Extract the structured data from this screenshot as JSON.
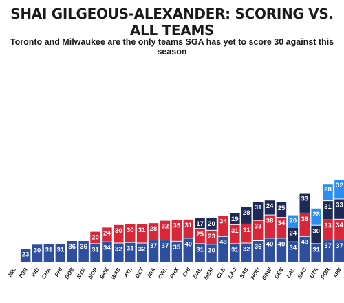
{
  "title": "SHAI GILGEOUS-ALEXANDER: SCORING VS. ALL TEAMS",
  "subtitle": "Toronto and Milwaukee are the only teams SGA has yet to score 30 against this season",
  "colors": {
    "game1": "#2e4f9e",
    "game2": "#d9273a",
    "game3": "#1d2a57",
    "game4": "#2c8df0"
  },
  "chart_data": {
    "type": "bar",
    "stacked": true,
    "title": "SHAI GILGEOUS-ALEXANDER: SCORING VS. ALL TEAMS",
    "subtitle": "Toronto and Milwaukee are the only teams SGA has yet to score 30 against this season",
    "xlabel": "",
    "ylabel": "",
    "grid": false,
    "legend": "none",
    "categories": [
      "MIL",
      "TOR",
      "IND",
      "CHA",
      "PHI",
      "BOS",
      "NYK",
      "NOP",
      "BRK",
      "WAS",
      "ATL",
      "DET",
      "MIA",
      "ORL",
      "PHX",
      "CHI",
      "DAL",
      "MEM",
      "CLE",
      "LAC",
      "SAS",
      "HOU",
      "GSW",
      "DEN",
      "LAL",
      "SAC",
      "UTA",
      "POR",
      "MIN"
    ],
    "games": [
      [],
      [
        23
      ],
      [
        30
      ],
      [
        31
      ],
      [
        31
      ],
      [
        36
      ],
      [
        36
      ],
      [
        31,
        20
      ],
      [
        34,
        24
      ],
      [
        32,
        30
      ],
      [
        33,
        30
      ],
      [
        32,
        31
      ],
      [
        37,
        28
      ],
      [
        37,
        32
      ],
      [
        35,
        35
      ],
      [
        40,
        31
      ],
      [
        31,
        25,
        17
      ],
      [
        30,
        23,
        20
      ],
      [
        43,
        34
      ],
      [
        31,
        31,
        19
      ],
      [
        32,
        31,
        28
      ],
      [
        36,
        33,
        31
      ],
      [
        40,
        38,
        24
      ],
      [
        40,
        34,
        25
      ],
      [
        34,
        24,
        20
      ],
      [
        43,
        38,
        33
      ],
      [
        31,
        30,
        28
      ],
      [
        37,
        33,
        31,
        28
      ],
      [
        37,
        34,
        33,
        32
      ]
    ],
    "game_color_keys": [
      [],
      [
        "game1"
      ],
      [
        "game1"
      ],
      [
        "game1"
      ],
      [
        "game1"
      ],
      [
        "game1"
      ],
      [
        "game1"
      ],
      [
        "game1",
        "game2"
      ],
      [
        "game1",
        "game2"
      ],
      [
        "game1",
        "game2"
      ],
      [
        "game1",
        "game2"
      ],
      [
        "game1",
        "game2"
      ],
      [
        "game1",
        "game2"
      ],
      [
        "game1",
        "game2"
      ],
      [
        "game1",
        "game2"
      ],
      [
        "game1",
        "game2"
      ],
      [
        "game1",
        "game2",
        "game3"
      ],
      [
        "game1",
        "game2",
        "game3"
      ],
      [
        "game1",
        "game2"
      ],
      [
        "game1",
        "game2",
        "game3"
      ],
      [
        "game1",
        "game2",
        "game3"
      ],
      [
        "game1",
        "game2",
        "game3"
      ],
      [
        "game1",
        "game2",
        "game3"
      ],
      [
        "game1",
        "game2",
        "game3"
      ],
      [
        "game1",
        "game3",
        "game4"
      ],
      [
        "game1",
        "game2",
        "game3"
      ],
      [
        "game1",
        "game3",
        "game4"
      ],
      [
        "game1",
        "game2",
        "game3",
        "game4"
      ],
      [
        "game1",
        "game2",
        "game3",
        "game4"
      ]
    ]
  }
}
